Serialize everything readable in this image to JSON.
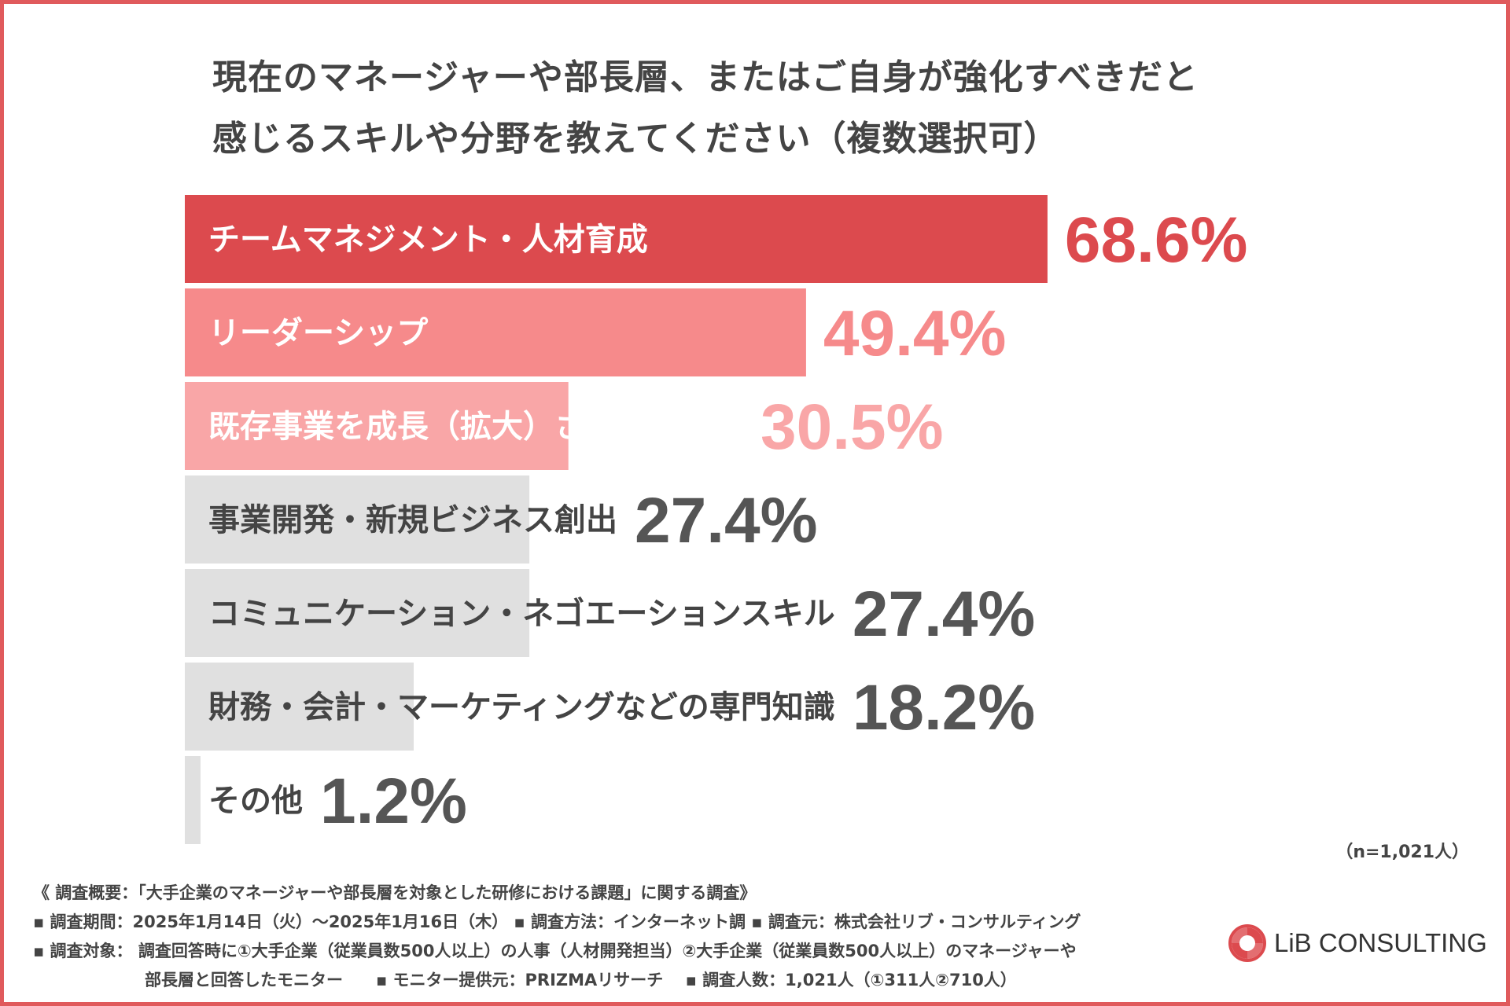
{
  "title": {
    "line1": "現在のマネージャーや部長層、またはご自身が強化すべきだと",
    "line2": "感じるスキルや分野を教えてください（複数選択可）"
  },
  "chart_data": {
    "type": "bar",
    "orientation": "horizontal",
    "categories": [
      "チームマネジメント・人材育成",
      "リーダーシップ",
      "既存事業を成長（拡大）させる推進力",
      "事業開発・新規ビジネス創出",
      "コミュニケーション・ネゴエーションスキル",
      "財務・会計・マーケティングなどの専門知識",
      "その他"
    ],
    "values": [
      68.6,
      49.4,
      30.5,
      27.4,
      27.4,
      18.2,
      1.2
    ],
    "value_labels": [
      "68.6%",
      "49.4%",
      "30.5%",
      "27.4%",
      "27.4%",
      "18.2%",
      "1.2%"
    ],
    "bar_colors": [
      "#dc4a4e",
      "#f68a8b",
      "#f9a6a7",
      "#e0e0e0",
      "#e0e0e0",
      "#e0e0e0",
      "#e0e0e0"
    ],
    "value_colors": [
      "#dc4a4e",
      "#f68a8b",
      "#f9a6a7",
      "#555555",
      "#555555",
      "#555555",
      "#555555"
    ],
    "label_colors": [
      "#ffffff",
      "#ffffff",
      "#ffffff",
      "#444444",
      "#444444",
      "#444444",
      "#444444"
    ],
    "xlim": [
      0,
      100
    ],
    "grid": false,
    "legend": "none"
  },
  "note": "（n=1,021人）",
  "survey": {
    "heading": "《 調査概要：「大手企業のマネージャーや部長層を対象とした研修における課題」に関する調査》",
    "line2": "▪ 調査期間：2025年1月14日（火）～2025年1月16日（木） ▪ 調査方法：インターネット調 ▪ 調査元：株式会社リブ・コンサルティング",
    "line3": "▪ 調査対象： 調査回答時に①大手企業（従業員数500人以上）の人事（人材開発担当）②大手企業（従業員数500人以上）のマネージャーや",
    "line4": "部長層と回答したモニター　　▪ モニター提供元：PRIZMAリサーチ　 ▪ 調査人数：1,021人（①311人②710人）"
  },
  "logo": {
    "text": "LiB CONSULTING",
    "icon": "lib-swirl-logo-icon",
    "color": "#dc4a4e"
  }
}
